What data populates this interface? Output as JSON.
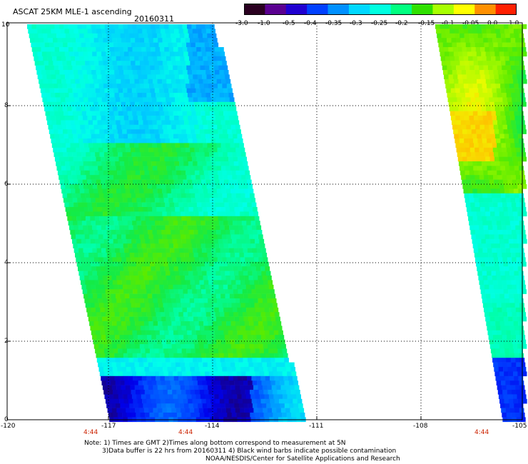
{
  "header": {
    "title": "ASCAT 25KM MLE-1 ascending",
    "date": "20160311"
  },
  "colorbar": {
    "labels": [
      "-3.0",
      "-1.0",
      "-0.5",
      "-0.4",
      "-0.35",
      "-0.3",
      "-0.25",
      "-0.2",
      "-0.15",
      "-0.1",
      "-0.05",
      "0.0",
      "1.0"
    ],
    "colors": [
      "#2a0020",
      "#5a0090",
      "#2000d0",
      "#0040ff",
      "#0090ff",
      "#00d8ff",
      "#00ffe0",
      "#00ff80",
      "#30e000",
      "#a8ff00",
      "#ffff00",
      "#ff9000",
      "#ff2000"
    ]
  },
  "map": {
    "lat_labels": [
      "0",
      "2",
      "4",
      "6",
      "8",
      "10"
    ],
    "lon_labels": [
      "-120",
      "-117",
      "-114",
      "-111",
      "-108",
      "-105"
    ],
    "time_labels": [
      "4:44",
      "4:44",
      "4:44"
    ]
  },
  "footer": {
    "note1": "Note: 1) Times are GMT 2)Times along bottom correspond to measurement at 5N",
    "note2": "3)Data buffer is 22 hrs from 20160311 4) Black wind barbs indicate possible contamination",
    "credit": "NOAA/NESDIS/Center for Satellite Applications and Research"
  }
}
